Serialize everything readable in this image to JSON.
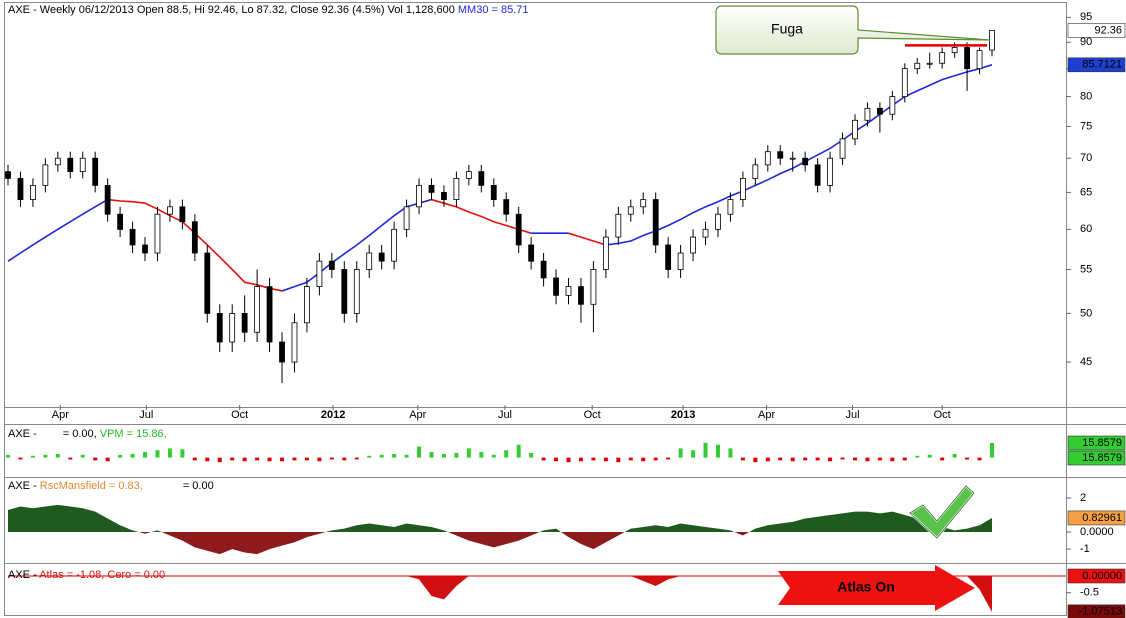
{
  "chart_data": [
    {
      "type": "candlestick",
      "title": "AXE - Weekly 06/12/2013 Open 88.5, Hi 92.46, Lo 87.32, Close 92.36 (4.5%) Vol 1,128,600",
      "ma_label": "MM30 = 85.71",
      "log_scale": true,
      "ylim": [
        41,
        98
      ],
      "yticks": [
        45,
        50,
        55,
        60,
        65,
        70,
        75,
        80,
        85,
        90,
        95
      ],
      "xlim": [
        0,
        79
      ],
      "xticks": [
        {
          "value": 4.2,
          "label": "Apr"
        },
        {
          "value": 11.1,
          "label": "Jul"
        },
        {
          "value": 18.6,
          "label": "Oct"
        },
        {
          "value": 26.1,
          "label": "2012"
        },
        {
          "value": 32.9,
          "label": "Apr"
        },
        {
          "value": 39.9,
          "label": "Jul"
        },
        {
          "value": 46.9,
          "label": "Oct"
        },
        {
          "value": 54.2,
          "label": "2013"
        },
        {
          "value": 60.9,
          "label": "Apr"
        },
        {
          "value": 67.8,
          "label": "Jul"
        },
        {
          "value": 75,
          "label": "Oct"
        }
      ],
      "candles": [
        [
          68,
          69,
          66,
          67
        ],
        [
          67,
          68,
          63,
          64
        ],
        [
          64,
          67,
          63,
          66
        ],
        [
          66,
          70,
          65,
          69
        ],
        [
          69,
          71,
          68,
          70
        ],
        [
          70,
          71,
          67,
          68
        ],
        [
          68,
          71,
          67,
          70
        ],
        [
          70,
          71,
          65,
          66
        ],
        [
          66,
          67,
          61,
          62
        ],
        [
          62,
          63,
          59,
          60
        ],
        [
          60,
          61,
          57,
          58
        ],
        [
          58,
          59,
          56,
          57
        ],
        [
          57,
          63,
          56,
          62
        ],
        [
          62,
          64,
          61,
          63
        ],
        [
          63,
          64,
          60,
          61
        ],
        [
          61,
          62,
          56,
          57
        ],
        [
          57,
          58,
          49,
          50
        ],
        [
          50,
          51,
          46,
          47
        ],
        [
          47,
          51,
          46,
          50
        ],
        [
          50,
          52,
          47,
          48
        ],
        [
          48,
          55,
          47,
          53
        ],
        [
          53,
          54,
          46,
          47
        ],
        [
          47,
          48,
          43,
          45
        ],
        [
          45,
          50,
          44,
          49
        ],
        [
          49,
          54,
          48,
          53
        ],
        [
          53,
          57,
          52,
          56
        ],
        [
          56,
          57,
          54,
          55
        ],
        [
          55,
          56,
          49,
          50
        ],
        [
          50,
          56,
          49,
          55
        ],
        [
          55,
          58,
          54,
          57
        ],
        [
          57,
          58,
          55,
          56
        ],
        [
          56,
          61,
          55,
          60
        ],
        [
          60,
          64,
          59,
          63
        ],
        [
          63,
          67,
          62,
          66
        ],
        [
          66,
          67,
          64,
          65
        ],
        [
          65,
          66,
          63,
          64
        ],
        [
          64,
          68,
          63,
          67
        ],
        [
          67,
          69,
          66,
          68
        ],
        [
          68,
          69,
          65,
          66
        ],
        [
          66,
          67,
          63,
          64
        ],
        [
          64,
          65,
          61,
          62
        ],
        [
          62,
          63,
          57,
          58
        ],
        [
          58,
          59,
          55,
          56
        ],
        [
          56,
          57,
          53,
          54
        ],
        [
          54,
          55,
          51,
          52
        ],
        [
          52,
          54,
          51,
          53
        ],
        [
          53,
          54,
          49,
          51
        ],
        [
          51,
          56,
          48,
          55
        ],
        [
          55,
          60,
          54,
          59
        ],
        [
          59,
          63,
          58,
          62
        ],
        [
          62,
          64,
          61,
          63
        ],
        [
          63,
          65,
          62,
          64
        ],
        [
          64,
          65,
          57,
          58
        ],
        [
          58,
          59,
          54,
          55
        ],
        [
          55,
          58,
          54,
          57
        ],
        [
          57,
          60,
          56,
          59
        ],
        [
          59,
          61,
          58,
          60
        ],
        [
          60,
          63,
          59,
          62
        ],
        [
          62,
          65,
          61,
          64
        ],
        [
          64,
          68,
          63,
          67
        ],
        [
          67,
          70,
          66,
          69
        ],
        [
          69,
          72,
          68,
          71
        ],
        [
          71,
          72,
          69,
          70
        ],
        [
          70,
          71,
          68,
          70
        ],
        [
          70,
          71,
          68,
          69
        ],
        [
          69,
          70,
          65,
          66
        ],
        [
          66,
          71,
          65,
          70
        ],
        [
          70,
          74,
          69,
          73
        ],
        [
          73,
          77,
          72,
          76
        ],
        [
          76,
          79,
          75,
          78
        ],
        [
          78,
          79,
          74,
          77
        ],
        [
          77,
          81,
          76,
          80
        ],
        [
          80,
          86,
          79,
          85
        ],
        [
          85,
          87,
          84,
          86
        ],
        [
          86,
          88,
          85,
          86
        ],
        [
          86,
          89,
          85,
          88
        ],
        [
          88,
          90,
          87,
          89
        ],
        [
          89,
          90,
          81,
          85
        ],
        [
          85,
          89,
          84,
          88.4
        ],
        [
          88.5,
          92.46,
          87.32,
          92.36
        ]
      ],
      "up_color": "#ffffff",
      "down_color": "#000000",
      "wick_color": "#000000",
      "ma": {
        "values": [
          56,
          57,
          58,
          59,
          60,
          61,
          62,
          63,
          64,
          63.8,
          63.7,
          63.5,
          62.7,
          61.8,
          61,
          59.5,
          58,
          56.5,
          55,
          53.5,
          53.2,
          52.8,
          52.5,
          53,
          53.5,
          54.6,
          55.8,
          56.9,
          58,
          59.2,
          60.5,
          61.8,
          63,
          63.5,
          64,
          63.5,
          63,
          62.3,
          61.7,
          61,
          60.5,
          60,
          59.5,
          59.5,
          59.5,
          59.5,
          59,
          58.5,
          58,
          58.2,
          58.5,
          59.2,
          59.8,
          60.5,
          61.3,
          62.2,
          63,
          63.7,
          64.5,
          65.2,
          66,
          66.8,
          67.7,
          68.5,
          69.5,
          70.5,
          71.5,
          72.8,
          74.2,
          75.5,
          77,
          78.5,
          80,
          81,
          82,
          83,
          83.7,
          84.4,
          85,
          85.71
        ],
        "rising_color": "#1f2ad6",
        "falling_color": "#e01010"
      },
      "last_tag": 92.36,
      "ma_tag": 85.7121,
      "resistance": 89.4,
      "resistance_color": "#e00000",
      "annotation": "Fuga"
    },
    {
      "type": "bar",
      "title": "AXE -",
      "subtitle": "= 0.00,",
      "series_label": "VPM = 15.86,",
      "ylim": [
        -20,
        30
      ],
      "positive_color": "#33cc33",
      "negative_color": "#dd0000",
      "values": [
        3,
        -2,
        2,
        3,
        4,
        -2,
        3,
        -3,
        -4,
        3,
        4,
        6,
        8,
        10,
        9,
        -3,
        -4,
        -5,
        -3,
        -4,
        -3,
        -4,
        -4,
        -3,
        -3,
        -4,
        -2,
        -3,
        -2,
        2,
        3,
        4,
        3,
        12,
        6,
        4,
        5,
        10,
        6,
        3,
        8,
        14,
        5,
        -3,
        -4,
        -5,
        -4,
        -3,
        -4,
        -5,
        -3,
        -4,
        -3,
        -2,
        10,
        8,
        16,
        14,
        10,
        -3,
        -5,
        -4,
        -3,
        -4,
        -3,
        -3,
        -4,
        -2,
        -3,
        -4,
        -3,
        -4,
        -3,
        2,
        3,
        -3,
        4,
        -2,
        -3,
        15.86
      ],
      "tag": 15.8579
    },
    {
      "type": "area",
      "title": "AXE -",
      "series_label": "RscMansfield = 0.83,",
      "subtitle": "= 0.00",
      "ylim": [
        -1.76,
        3.06
      ],
      "yticks": [
        2,
        {
          "value": 0,
          "label": "0.0000"
        },
        -1
      ],
      "positive_color": "#1f5a1f",
      "negative_color": "#8e1b1b",
      "values": [
        1.3,
        1.5,
        1.4,
        1.5,
        1.6,
        1.5,
        1.4,
        1.2,
        0.8,
        0.4,
        0.1,
        -0.1,
        0.1,
        -0.2,
        -0.5,
        -0.9,
        -1.1,
        -1.3,
        -1.0,
        -1.2,
        -1.3,
        -1.0,
        -0.8,
        -0.6,
        -0.3,
        -0.1,
        0.1,
        0.2,
        0.4,
        0.5,
        0.4,
        0.3,
        0.5,
        0.4,
        0.3,
        0.1,
        -0.2,
        -0.5,
        -0.7,
        -0.9,
        -0.7,
        -0.5,
        -0.2,
        0.1,
        0.2,
        -0.3,
        -0.7,
        -1.0,
        -0.6,
        -0.2,
        0.2,
        0.3,
        0.4,
        0.3,
        0.5,
        0.4,
        0.3,
        0.2,
        0.1,
        -0.2,
        0.2,
        0.4,
        0.5,
        0.6,
        0.8,
        0.9,
        1.0,
        1.1,
        1.2,
        1.2,
        1.1,
        1.2,
        1.0,
        0.8,
        0.6,
        0.3,
        0.1,
        0.2,
        0.4,
        0.83
      ],
      "tag": 0.82961
    },
    {
      "type": "area",
      "title": "AXE -",
      "series_label": "Atlas = -1.08,",
      "subtitle": "Cero = 0.00",
      "ylim": [
        -1.2,
        0.3
      ],
      "yticks": [
        -0.5
      ],
      "negative_color": "#d01010",
      "zero_color": "#e00000",
      "values": [
        0,
        0,
        0,
        0,
        0,
        0,
        0,
        0,
        0,
        0,
        0,
        0,
        0,
        0,
        0,
        0,
        0,
        0,
        0,
        0,
        0,
        0,
        0,
        0,
        0,
        0,
        0,
        0,
        0,
        0,
        0,
        0,
        0,
        -0.1,
        -0.6,
        -0.7,
        -0.3,
        0,
        0,
        0,
        0,
        0,
        0,
        0,
        0,
        0,
        0,
        0,
        0,
        0,
        0,
        -0.15,
        -0.3,
        -0.1,
        0,
        0,
        0,
        0,
        0,
        0,
        0,
        0,
        0,
        0,
        0,
        0,
        0,
        0,
        0,
        0,
        0,
        0,
        0,
        0,
        0,
        0,
        0,
        0,
        -0.4,
        -1.08
      ],
      "zero_tag": {
        "value": 0,
        "label": "0.00000"
      },
      "tag": -1.07513,
      "annotation": "Atlas On"
    }
  ]
}
